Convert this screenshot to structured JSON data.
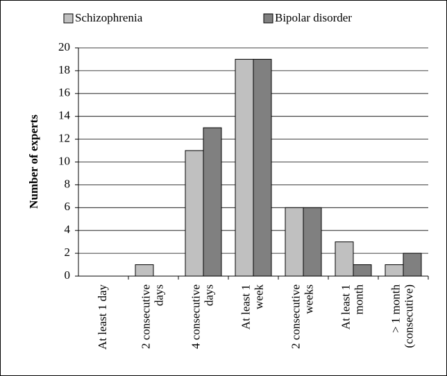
{
  "chart_data": {
    "type": "bar",
    "y_label": "Number of experts",
    "categories": [
      "At least 1 day",
      "2 consecutive days",
      "4 consecutive days",
      "At least 1 week",
      "2 consecutive weeks",
      "At least 1 month",
      "> 1 month (consecutive)"
    ],
    "series": [
      {
        "name": "Schizophrenia",
        "color": "#c0c0c0",
        "values": [
          0,
          1,
          11,
          19,
          6,
          3,
          1
        ]
      },
      {
        "name": "Bipolar disorder",
        "color": "#808080",
        "values": [
          0,
          0,
          13,
          19,
          6,
          1,
          2
        ]
      }
    ],
    "ylim": [
      0,
      20
    ],
    "yticks": [
      0,
      2,
      4,
      6,
      8,
      10,
      12,
      14,
      16,
      18,
      20
    ],
    "grid": true,
    "legend": "top"
  }
}
